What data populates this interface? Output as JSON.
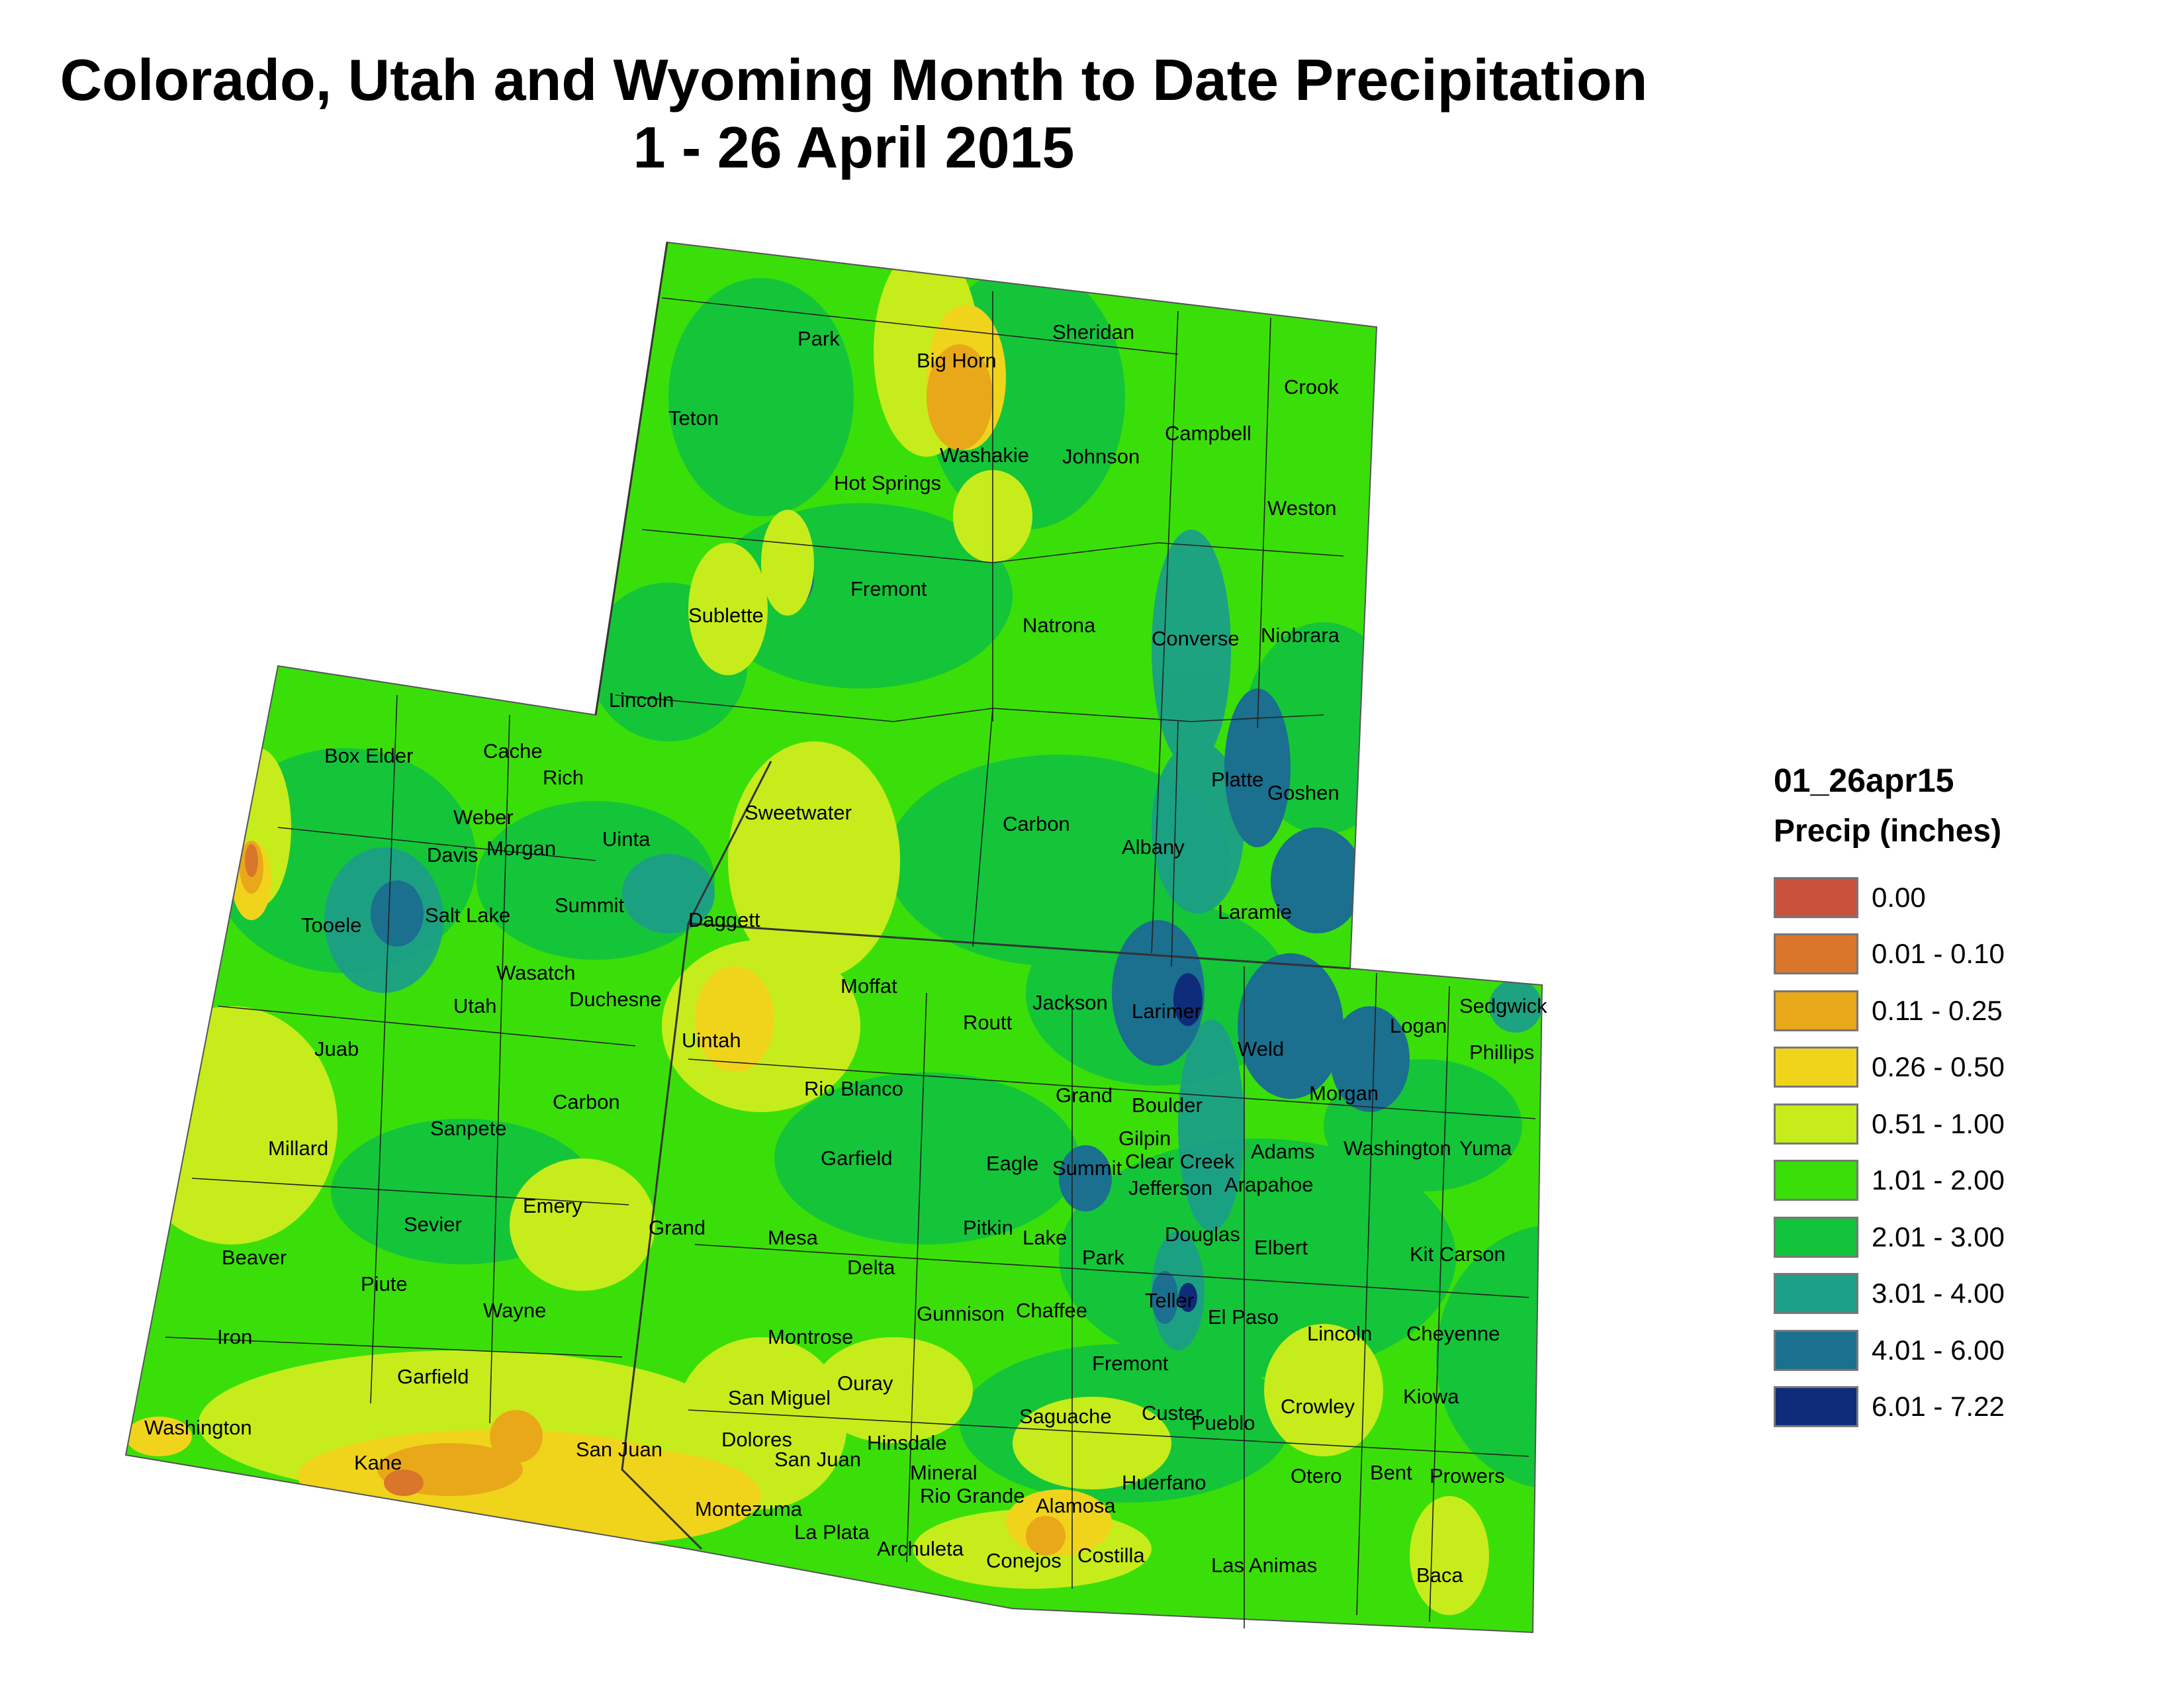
{
  "title_line1": "Colorado, Utah and Wyoming Month to Date Precipitation",
  "title_line2": "1 - 26 April 2015",
  "legend": {
    "title": "01_26apr15",
    "subtitle": "Precip (inches)",
    "items": [
      {
        "label": "0.00",
        "color": "#c8523c"
      },
      {
        "label": "0.01 - 0.10",
        "color": "#d9762b"
      },
      {
        "label": "0.11 - 0.25",
        "color": "#e8a81a"
      },
      {
        "label": "0.26 - 0.50",
        "color": "#f0d41c"
      },
      {
        "label": "0.51 - 1.00",
        "color": "#c6ec1c"
      },
      {
        "label": "1.01 - 2.00",
        "color": "#3adf0a"
      },
      {
        "label": "2.01 - 3.00",
        "color": "#13c33c"
      },
      {
        "label": "3.01 - 4.00",
        "color": "#1b9f86"
      },
      {
        "label": "4.01 - 6.00",
        "color": "#1b6f8f"
      },
      {
        "label": "6.01 - 7.22",
        "color": "#0e2c7a"
      }
    ]
  },
  "counties": {
    "wyoming": [
      "Park",
      "Big Horn",
      "Sheridan",
      "Crook",
      "Teton",
      "Campbell",
      "Washakie",
      "Johnson",
      "Hot Springs",
      "Weston",
      "Fremont",
      "Sublette",
      "Natrona",
      "Converse",
      "Niobrara",
      "Lincoln",
      "Sweetwater",
      "Carbon",
      "Platte",
      "Goshen",
      "Albany",
      "Uinta",
      "Laramie"
    ],
    "utah": [
      "Box Elder",
      "Cache",
      "Rich",
      "Weber",
      "Morgan",
      "Davis",
      "Summit",
      "Tooele",
      "Salt Lake",
      "Daggett",
      "Wasatch",
      "Utah",
      "Duchesne",
      "Uintah",
      "Juab",
      "Carbon",
      "Sanpete",
      "Millard",
      "Emery",
      "Sevier",
      "Grand",
      "Beaver",
      "Piute",
      "Wayne",
      "Iron",
      "Garfield",
      "Washington",
      "Kane",
      "San Juan"
    ],
    "colorado": [
      "Moffat",
      "Sedgwick",
      "Logan",
      "Jackson",
      "Larimer",
      "Routt",
      "Phillips",
      "Weld",
      "Grand",
      "Morgan",
      "Rio Blanco",
      "Boulder",
      "Gilpin",
      "Washington",
      "Yuma",
      "Adams",
      "Garfield",
      "Eagle",
      "Summit",
      "Clear Creek",
      "Jefferson",
      "Arapahoe",
      "Douglas",
      "Mesa",
      "Pitkin",
      "Lake",
      "Park",
      "Elbert",
      "Kit Carson",
      "Delta",
      "Teller",
      "El Paso",
      "Gunnison",
      "Chaffee",
      "Lincoln",
      "Cheyenne",
      "Montrose",
      "Fremont",
      "Ouray",
      "Crowley",
      "Kiowa",
      "San Miguel",
      "Saguache",
      "Custer",
      "Pueblo",
      "Dolores",
      "Hinsdale",
      "San Juan",
      "Mineral",
      "Huerfano",
      "Otero",
      "Bent",
      "Prowers",
      "Rio Grande",
      "Alamosa",
      "Montezuma",
      "La Plata",
      "Archuleta",
      "Conejos",
      "Costilla",
      "Las Animas",
      "Baca"
    ]
  }
}
